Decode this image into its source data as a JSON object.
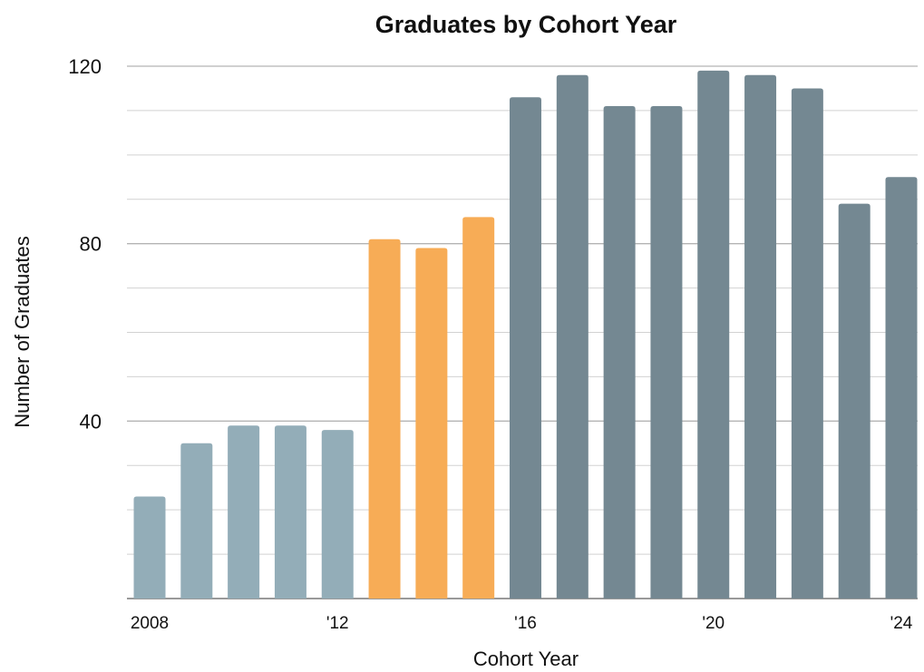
{
  "chart_data": {
    "type": "bar",
    "title": "Graduates by Cohort Year",
    "xlabel": "Cohort Year",
    "ylabel": "Number of Graduates",
    "categories": [
      "2008",
      "2009",
      "2010",
      "2011",
      "2012",
      "2013",
      "2014",
      "2015",
      "2016",
      "2017",
      "2018",
      "2019",
      "2020",
      "2021",
      "2022",
      "2023",
      "2024"
    ],
    "x_tick_labels": [
      {
        "category": "2008",
        "label": "2008"
      },
      {
        "category": "2012",
        "label": "'12"
      },
      {
        "category": "2016",
        "label": "'16"
      },
      {
        "category": "2020",
        "label": "'20"
      },
      {
        "category": "2024",
        "label": "'24"
      }
    ],
    "values": [
      23,
      35,
      39,
      39,
      38,
      81,
      79,
      86,
      113,
      118,
      111,
      111,
      119,
      118,
      115,
      89,
      95
    ],
    "bar_colors": [
      "#93adb8",
      "#93adb8",
      "#93adb8",
      "#93adb8",
      "#93adb8",
      "#f7ac56",
      "#f7ac56",
      "#f7ac56",
      "#748892",
      "#748892",
      "#748892",
      "#748892",
      "#748892",
      "#748892",
      "#748892",
      "#748892",
      "#748892"
    ],
    "ylim": [
      0,
      120
    ],
    "y_ticks": [
      40,
      80,
      120
    ],
    "y_minor_step": 10,
    "grid": true,
    "legend": "none"
  }
}
